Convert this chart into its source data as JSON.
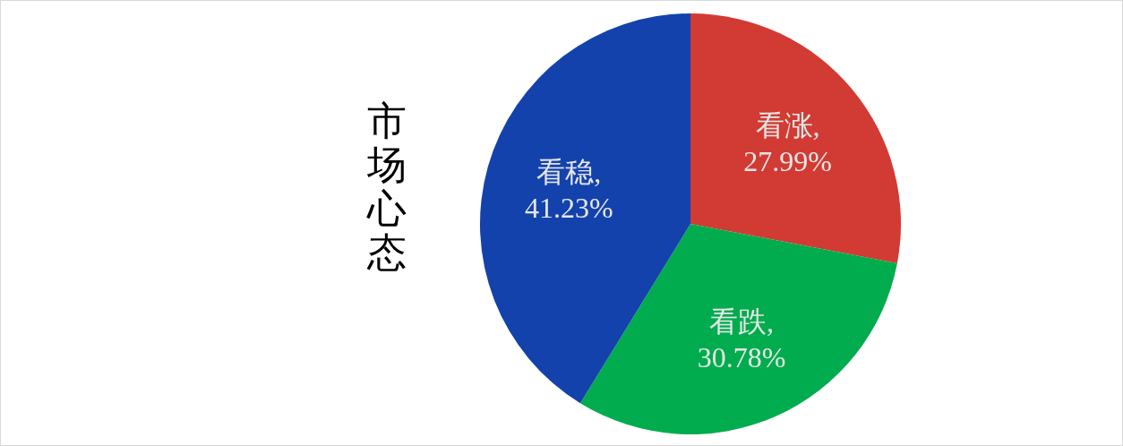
{
  "chart_data": {
    "type": "pie",
    "title": "市场心态",
    "categories": [
      "看涨",
      "看跌",
      "看稳"
    ],
    "values": [
      27.99,
      30.78,
      41.23
    ],
    "colors": [
      "#d13b33",
      "#00ac4e",
      "#1342ac"
    ],
    "value_labels": [
      ",27.99%",
      ",30.78%",
      ",41.23%"
    ]
  }
}
